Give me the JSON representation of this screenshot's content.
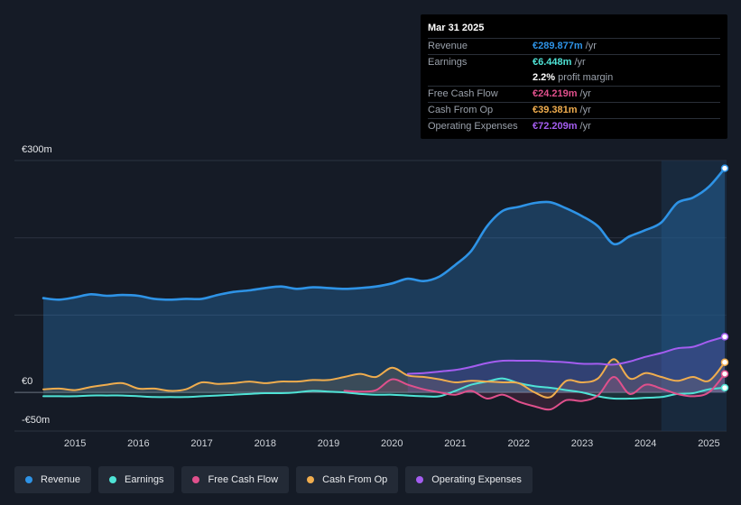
{
  "tooltip": {
    "date": "Mar 31 2025",
    "rows": [
      {
        "label": "Revenue",
        "value": "€289.877m",
        "unit": "/yr",
        "color": "#2e93e6"
      },
      {
        "label": "Earnings",
        "value": "€6.448m",
        "unit": "/yr",
        "color": "#4fe3d6"
      },
      {
        "label": "",
        "value": "2.2%",
        "unit": "profit margin",
        "color": "#ffffff"
      },
      {
        "label": "Free Cash Flow",
        "value": "€24.219m",
        "unit": "/yr",
        "color": "#e0508c"
      },
      {
        "label": "Cash From Op",
        "value": "€39.381m",
        "unit": "/yr",
        "color": "#f0ad4e"
      },
      {
        "label": "Operating Expenses",
        "value": "€72.209m",
        "unit": "/yr",
        "color": "#a45df0"
      }
    ]
  },
  "legend": [
    {
      "label": "Revenue",
      "color": "#2e93e6"
    },
    {
      "label": "Earnings",
      "color": "#4fe3d6"
    },
    {
      "label": "Free Cash Flow",
      "color": "#e0508c"
    },
    {
      "label": "Cash From Op",
      "color": "#f0ad4e"
    },
    {
      "label": "Operating Expenses",
      "color": "#a45df0"
    }
  ],
  "chart_data": {
    "type": "area",
    "title": "",
    "xlabel": "",
    "ylabel": "",
    "currency_unit": "€m",
    "ylim": [
      -50,
      300
    ],
    "y_tick_labels": [
      "€300m",
      "€0",
      "-€50m"
    ],
    "x_tick_labels": [
      "2015",
      "2016",
      "2017",
      "2018",
      "2019",
      "2020",
      "2021",
      "2022",
      "2023",
      "2024",
      "2025"
    ],
    "xlim": [
      2014.5,
      2025.25
    ],
    "highlight_from": 2024.25,
    "series": [
      {
        "name": "Revenue",
        "color": "#2e93e6",
        "x": [
          2014.5,
          2014.75,
          2015.0,
          2015.25,
          2015.5,
          2015.75,
          2016.0,
          2016.25,
          2016.5,
          2016.75,
          2017.0,
          2017.25,
          2017.5,
          2017.75,
          2018.0,
          2018.25,
          2018.5,
          2018.75,
          2019.0,
          2019.25,
          2019.5,
          2019.75,
          2020.0,
          2020.25,
          2020.5,
          2020.75,
          2021.0,
          2021.25,
          2021.5,
          2021.75,
          2022.0,
          2022.25,
          2022.5,
          2022.75,
          2023.0,
          2023.25,
          2023.5,
          2023.75,
          2024.0,
          2024.25,
          2024.5,
          2024.75,
          2025.0,
          2025.25
        ],
        "y": [
          122,
          120,
          123,
          127,
          125,
          126,
          125,
          121,
          120,
          121,
          121,
          126,
          130,
          132,
          135,
          137,
          134,
          136,
          135,
          134,
          135,
          137,
          141,
          147,
          144,
          150,
          165,
          183,
          215,
          235,
          240,
          245,
          246,
          238,
          228,
          215,
          192,
          202,
          210,
          220,
          245,
          252,
          266,
          290
        ]
      },
      {
        "name": "Earnings",
        "color": "#4fe3d6",
        "x": [
          2014.5,
          2014.75,
          2015.0,
          2015.25,
          2015.5,
          2015.75,
          2016.0,
          2016.25,
          2016.5,
          2016.75,
          2017.0,
          2017.25,
          2017.5,
          2017.75,
          2018.0,
          2018.25,
          2018.5,
          2018.75,
          2019.0,
          2019.25,
          2019.5,
          2019.75,
          2020.0,
          2020.25,
          2020.5,
          2020.75,
          2021.0,
          2021.25,
          2021.5,
          2021.75,
          2022.0,
          2022.25,
          2022.5,
          2022.75,
          2023.0,
          2023.25,
          2023.5,
          2023.75,
          2024.0,
          2024.25,
          2024.5,
          2024.75,
          2025.0,
          2025.25
        ],
        "y": [
          -5,
          -5,
          -5,
          -4,
          -4,
          -4,
          -5,
          -6,
          -6,
          -6,
          -5,
          -4,
          -3,
          -2,
          -1,
          -1,
          0,
          2,
          1,
          0,
          -2,
          -3,
          -3,
          -4,
          -5,
          -5,
          2,
          10,
          14,
          18,
          12,
          8,
          6,
          3,
          0,
          -5,
          -8,
          -8,
          -7,
          -6,
          -2,
          -1,
          4,
          6
        ]
      },
      {
        "name": "Free Cash Flow",
        "color": "#e0508c",
        "x": [
          2019.25,
          2019.5,
          2019.75,
          2020.0,
          2020.25,
          2020.5,
          2020.75,
          2021.0,
          2021.25,
          2021.5,
          2021.75,
          2022.0,
          2022.25,
          2022.5,
          2022.75,
          2023.0,
          2023.25,
          2023.5,
          2023.75,
          2024.0,
          2024.25,
          2024.5,
          2024.75,
          2025.0,
          2025.25
        ],
        "y": [
          2,
          1,
          3,
          17,
          10,
          4,
          0,
          -3,
          2,
          -8,
          -3,
          -12,
          -18,
          -22,
          -10,
          -11,
          -4,
          20,
          -2,
          10,
          5,
          -2,
          -5,
          0,
          24
        ]
      },
      {
        "name": "Cash From Op",
        "color": "#f0ad4e",
        "x": [
          2014.5,
          2014.75,
          2015.0,
          2015.25,
          2015.5,
          2015.75,
          2016.0,
          2016.25,
          2016.5,
          2016.75,
          2017.0,
          2017.25,
          2017.5,
          2017.75,
          2018.0,
          2018.25,
          2018.5,
          2018.75,
          2019.0,
          2019.25,
          2019.5,
          2019.75,
          2020.0,
          2020.25,
          2020.5,
          2020.75,
          2021.0,
          2021.25,
          2021.5,
          2021.75,
          2022.0,
          2022.25,
          2022.5,
          2022.75,
          2023.0,
          2023.25,
          2023.5,
          2023.75,
          2024.0,
          2024.25,
          2024.5,
          2024.75,
          2025.0,
          2025.25
        ],
        "y": [
          4,
          5,
          3,
          7,
          10,
          12,
          5,
          5,
          2,
          4,
          13,
          11,
          12,
          14,
          12,
          14,
          14,
          16,
          16,
          20,
          24,
          20,
          32,
          22,
          20,
          17,
          13,
          15,
          14,
          13,
          12,
          0,
          -6,
          15,
          13,
          18,
          43,
          18,
          25,
          20,
          15,
          20,
          15,
          39
        ]
      },
      {
        "name": "Operating Expenses",
        "color": "#a45df0",
        "x": [
          2020.25,
          2020.5,
          2020.75,
          2021.0,
          2021.25,
          2021.5,
          2021.75,
          2022.0,
          2022.25,
          2022.5,
          2022.75,
          2023.0,
          2023.25,
          2023.5,
          2023.75,
          2024.0,
          2024.25,
          2024.5,
          2024.75,
          2025.0,
          2025.25
        ],
        "y": [
          24,
          25,
          27,
          29,
          33,
          38,
          41,
          41,
          41,
          40,
          39,
          37,
          37,
          36,
          40,
          46,
          51,
          57,
          59,
          66,
          72
        ]
      }
    ]
  }
}
